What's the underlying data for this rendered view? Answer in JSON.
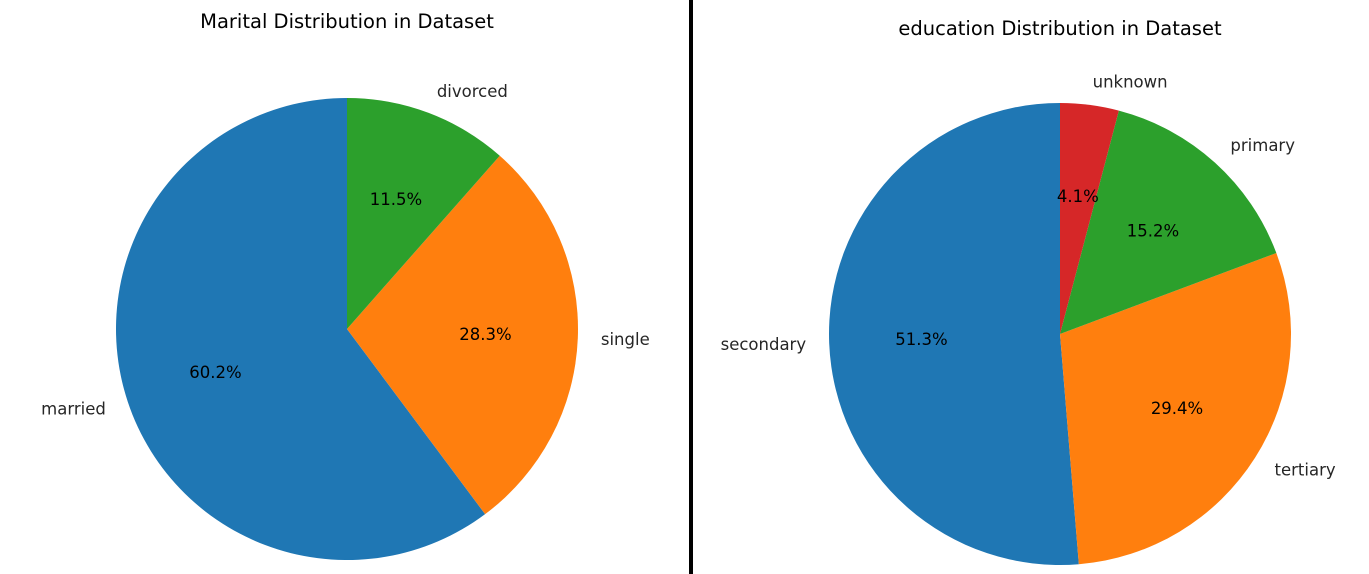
{
  "chart_data": [
    {
      "type": "pie",
      "title": "Marital Distribution in Dataset",
      "categories": [
        "married",
        "single",
        "divorced"
      ],
      "values": [
        60.2,
        28.3,
        11.5
      ],
      "value_labels": [
        "60.2%",
        "28.3%",
        "11.5%"
      ],
      "colors": [
        "#1f77b4",
        "#ff7f0e",
        "#2ca02c"
      ],
      "start_angle_deg": 90,
      "direction": "counterclockwise",
      "legend": "none"
    },
    {
      "type": "pie",
      "title": "education Distribution in Dataset",
      "categories": [
        "secondary",
        "tertiary",
        "primary",
        "unknown"
      ],
      "values": [
        51.3,
        29.4,
        15.2,
        4.1
      ],
      "value_labels": [
        "51.3%",
        "29.4%",
        "15.2%",
        "4.1%"
      ],
      "colors": [
        "#1f77b4",
        "#ff7f0e",
        "#2ca02c",
        "#d62728"
      ],
      "start_angle_deg": 90,
      "direction": "counterclockwise",
      "legend": "none"
    }
  ]
}
